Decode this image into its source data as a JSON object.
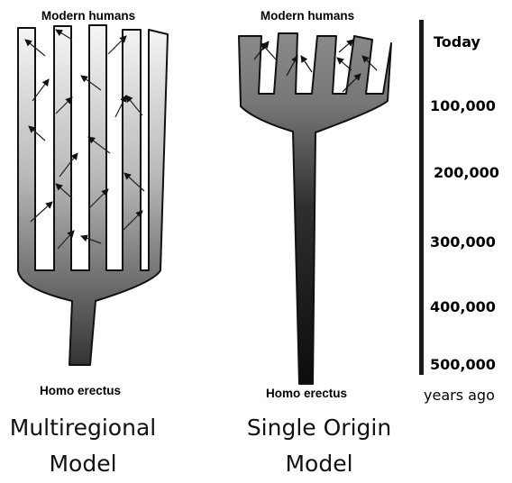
{
  "multiregional": {
    "top_label": "Modern humans",
    "bottom_label": "Homo erectus",
    "title_line1": "Multiregional",
    "title_line2": "Model"
  },
  "single_origin": {
    "top_label": "Modern humans",
    "bottom_label": "Homo erectus",
    "title_line1": "Single Origin",
    "title_line2": "Model"
  },
  "timeline": {
    "ticks": [
      "Today",
      "100,000",
      "200,000",
      "300,000",
      "400,000",
      "500,000"
    ],
    "unit_label": "years ago"
  },
  "colors": {
    "branch_light": "#f4f4f4",
    "branch_dark": "#3a3a3a",
    "outline": "#111111",
    "axis": "#1a1a1a"
  }
}
